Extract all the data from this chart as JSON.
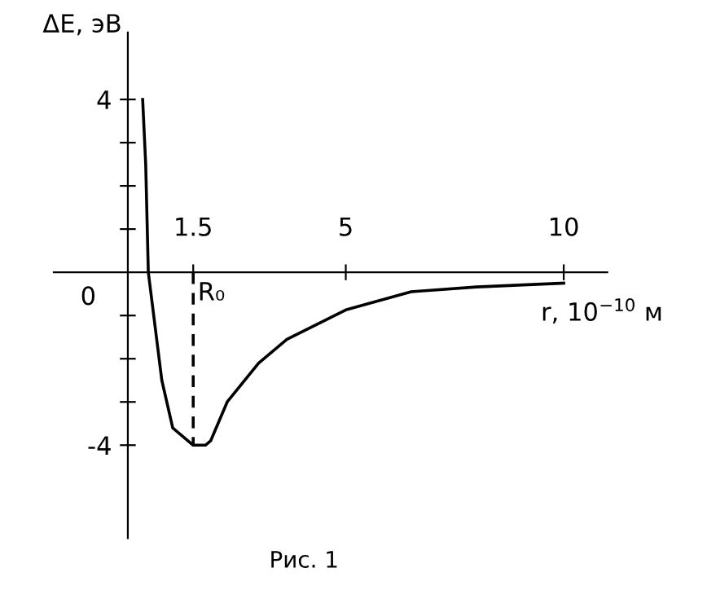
{
  "chart_data": {
    "type": "line",
    "xlabel": "r, 10$^{−10}$ м",
    "ylabel": "ΔE, эВ",
    "xlim": [
      -1.7,
      11
    ],
    "ylim": [
      -6.15,
      5.55
    ],
    "xticks": [
      1.5,
      5,
      10
    ],
    "yticks": [
      {
        "value": -4,
        "label": "-4"
      },
      {
        "value": -3,
        "label": null
      },
      {
        "value": -2,
        "label": null
      },
      {
        "value": -1,
        "label": null
      },
      {
        "value": 1,
        "label": null
      },
      {
        "value": 2,
        "label": null
      },
      {
        "value": 3,
        "label": null
      },
      4
    ],
    "grid": false,
    "legend": false,
    "marker": "none",
    "series": [
      {
        "color": "#000000",
        "line_style": "solid",
        "x": [
          0.34,
          0.41,
          0.47,
          0.78,
          1.03,
          1.5,
          1.78,
          1.9,
          2.28,
          3.0,
          3.65,
          5.0,
          6.5,
          8.0,
          10
        ],
        "values": [
          4.0,
          2.5,
          0,
          -2.5,
          -3.6,
          -4.0,
          -4.0,
          -3.9,
          -3.0,
          -2.1,
          -1.55,
          -0.87,
          -0.45,
          -0.34,
          -0.25
        ]
      },
      {
        "color": "#000000",
        "line_style": "dashed",
        "x": [
          1.5,
          1.5
        ],
        "values": [
          0,
          -4
        ]
      }
    ],
    "annotations": [
      "0",
      {
        "text": "R₀",
        "x": 1.5,
        "y": 0
      },
      "Рис. 1"
    ]
  }
}
